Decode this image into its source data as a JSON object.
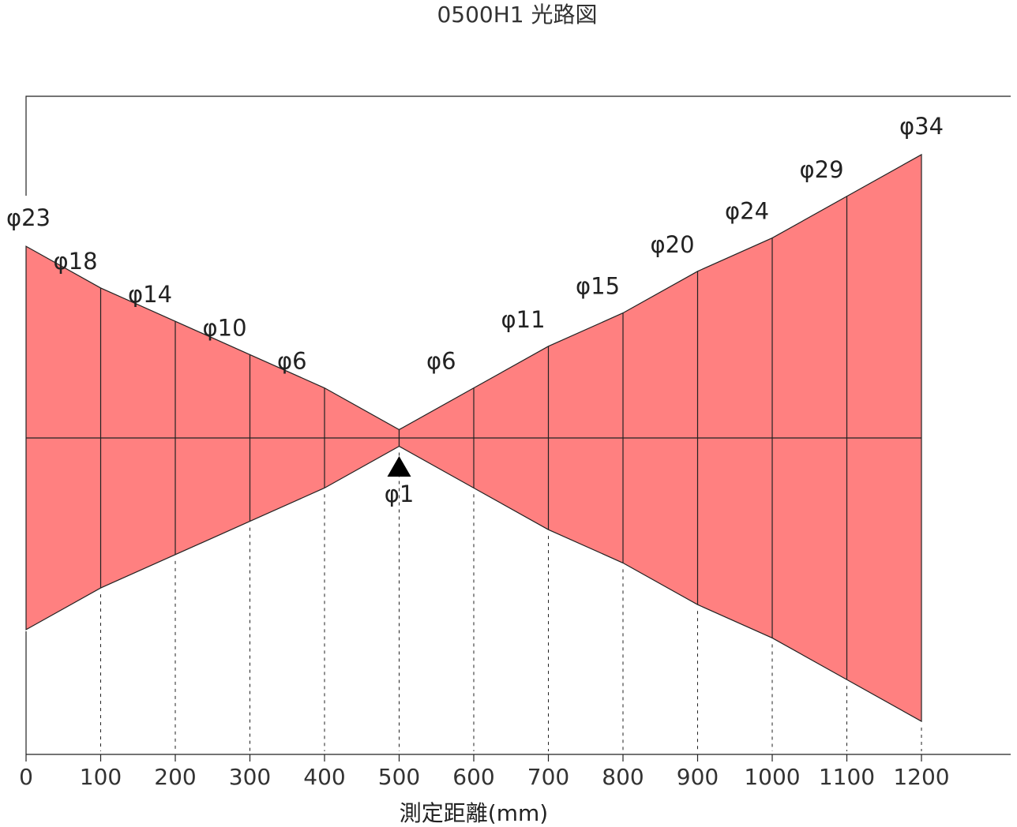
{
  "chart_data": {
    "type": "area",
    "title": "0500H1 光路図",
    "xlabel": "測定距離(mm)",
    "ylabel": "",
    "xlim": [
      0,
      1200
    ],
    "x_ticks": [
      0,
      100,
      200,
      300,
      400,
      500,
      600,
      700,
      800,
      900,
      1000,
      1100,
      1200
    ],
    "x_tick_labels": [
      "0",
      "100",
      "200",
      "300",
      "400",
      "500",
      "600",
      "700",
      "800",
      "900",
      "1000",
      "1100",
      "1200"
    ],
    "beam_diameter_mm": [
      23,
      18,
      14,
      10,
      6,
      1,
      6,
      11,
      15,
      20,
      24,
      29,
      34
    ],
    "diameter_labels": [
      "φ23",
      "φ18",
      "φ14",
      "φ10",
      "φ6",
      "φ1",
      "φ6",
      "φ11",
      "φ15",
      "φ20",
      "φ24",
      "φ29",
      "φ34"
    ],
    "focus_point_mm": 500,
    "fill_color": "#ff8080",
    "line_color": "#222222",
    "marker": "triangle-up-icon",
    "grid": false
  }
}
